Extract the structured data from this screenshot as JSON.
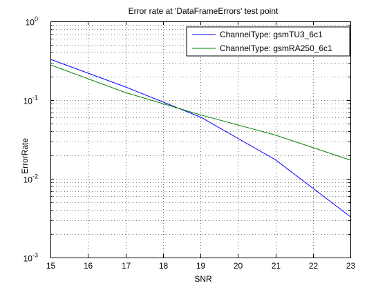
{
  "chart_data": {
    "type": "line",
    "title": "Error rate at 'DataFrameErrors' test point",
    "xlabel": "SNR",
    "ylabel": "ErrorRate",
    "xlim": [
      15,
      23
    ],
    "ylim": [
      0.001,
      1
    ],
    "yscale": "log",
    "grid": true,
    "legend_position": "top-right",
    "x_ticks": [
      "15",
      "16",
      "17",
      "18",
      "19",
      "20",
      "21",
      "22",
      "23"
    ],
    "y_ticks": [
      {
        "base": "10",
        "exp": "0",
        "value": 1
      },
      {
        "base": "10",
        "exp": "-1",
        "value": 0.1
      },
      {
        "base": "10",
        "exp": "-2",
        "value": 0.01
      },
      {
        "base": "10",
        "exp": "-3",
        "value": 0.001
      }
    ],
    "series": [
      {
        "name": "ChannelType: gsmTU3_6c1",
        "color": "#0000ff",
        "x": [
          15,
          17,
          19,
          21,
          23
        ],
        "y": [
          0.33,
          0.147,
          0.061,
          0.0175,
          0.0033
        ]
      },
      {
        "name": "ChannelType: gsmRA250_6c1",
        "color": "#008000",
        "x": [
          15,
          17,
          19,
          21,
          23
        ],
        "y": [
          0.28,
          0.125,
          0.065,
          0.036,
          0.0173
        ]
      }
    ]
  }
}
